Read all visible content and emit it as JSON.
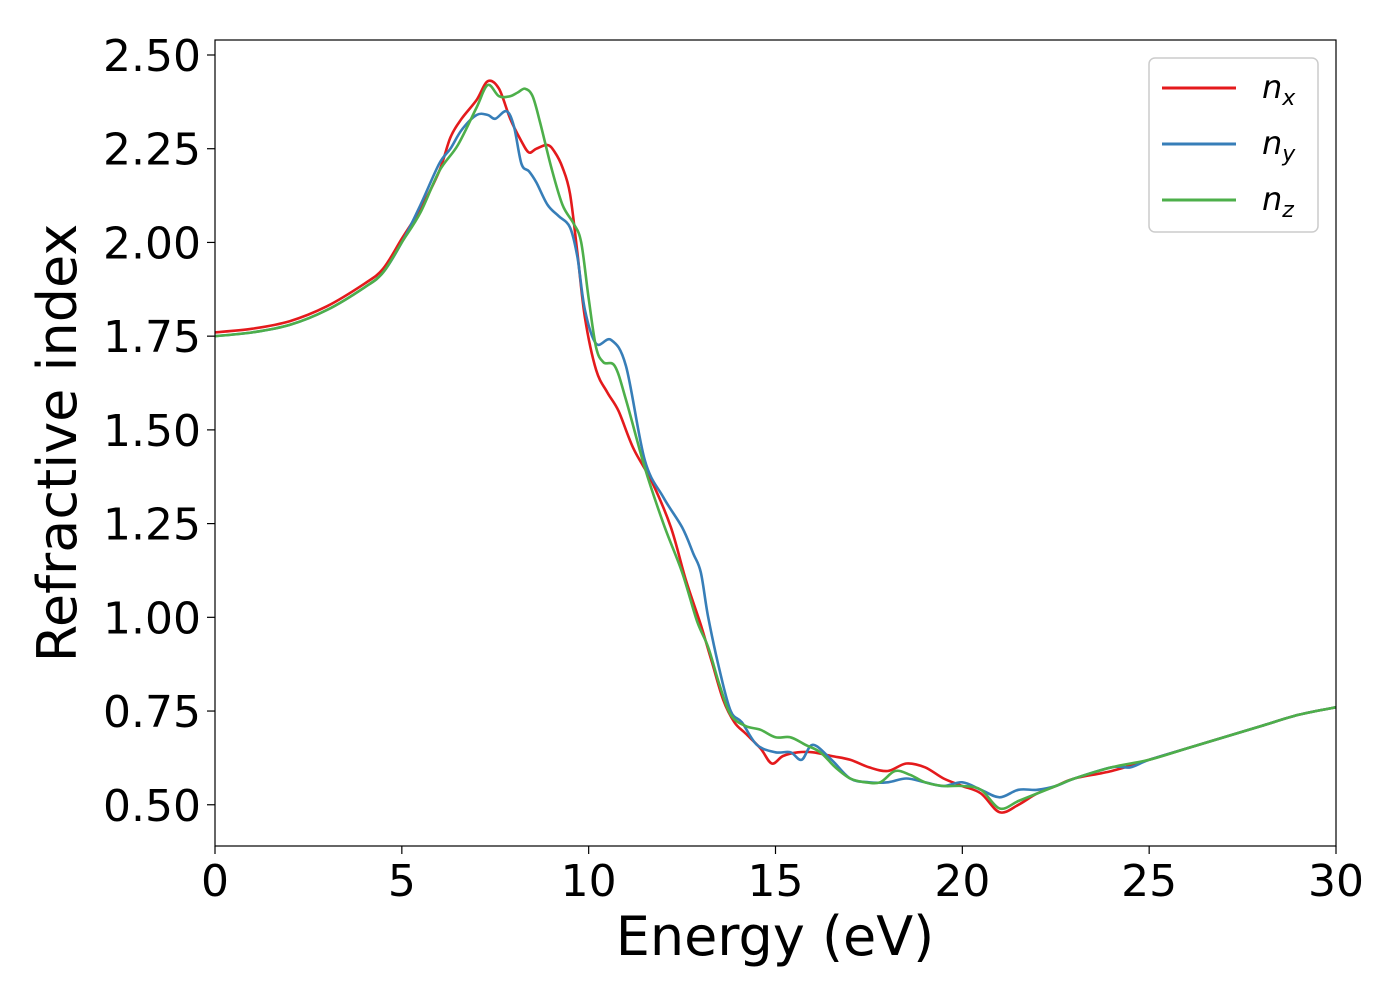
{
  "chart_data": {
    "type": "line",
    "xlabel": "Energy (eV)",
    "ylabel": "Refractive index",
    "xlim": [
      0,
      30
    ],
    "ylim": [
      0.39,
      2.54
    ],
    "xticks": [
      0,
      5,
      10,
      15,
      20,
      25,
      30
    ],
    "xtick_labels": [
      "0",
      "5",
      "10",
      "15",
      "20",
      "25",
      "30"
    ],
    "yticks": [
      0.5,
      0.75,
      1.0,
      1.25,
      1.5,
      1.75,
      2.0,
      2.25,
      2.5
    ],
    "ytick_labels": [
      "0.50",
      "0.75",
      "1.00",
      "1.25",
      "1.50",
      "1.75",
      "2.00",
      "2.25",
      "2.50"
    ],
    "grid": false,
    "legend_position": "top-right",
    "series": [
      {
        "name": "n",
        "subscript": "x",
        "color": "#e41a1c",
        "x": [
          0,
          1,
          2,
          3,
          4,
          4.5,
          5,
          5.5,
          6,
          6.3,
          6.6,
          7,
          7.3,
          7.6,
          7.9,
          8.2,
          8.4,
          8.6,
          8.9,
          9.1,
          9.3,
          9.5,
          9.7,
          9.9,
          10.2,
          10.5,
          10.8,
          11.2,
          11.7,
          12.2,
          12.6,
          13.0,
          13.3,
          13.6,
          13.9,
          14.2,
          14.6,
          14.9,
          15.2,
          15.6,
          16.0,
          16.5,
          17.0,
          17.5,
          18.0,
          18.5,
          19.0,
          19.5,
          20.0,
          20.5,
          21.0,
          21.5,
          22.0,
          22.5,
          23.0,
          24.0,
          25.0,
          26.0,
          27.0,
          28.0,
          29.0,
          30.0
        ],
        "y": [
          1.76,
          1.77,
          1.79,
          1.83,
          1.89,
          1.93,
          2.01,
          2.09,
          2.19,
          2.28,
          2.33,
          2.38,
          2.43,
          2.41,
          2.33,
          2.27,
          2.24,
          2.25,
          2.26,
          2.24,
          2.2,
          2.13,
          1.97,
          1.8,
          1.66,
          1.6,
          1.55,
          1.45,
          1.36,
          1.24,
          1.1,
          0.98,
          0.88,
          0.78,
          0.72,
          0.69,
          0.65,
          0.61,
          0.63,
          0.64,
          0.64,
          0.63,
          0.62,
          0.6,
          0.59,
          0.61,
          0.6,
          0.57,
          0.55,
          0.53,
          0.48,
          0.5,
          0.53,
          0.55,
          0.57,
          0.59,
          0.62,
          0.65,
          0.68,
          0.71,
          0.74,
          0.76
        ]
      },
      {
        "name": "n",
        "subscript": "y",
        "color": "#377eb8",
        "x": [
          0,
          1,
          2,
          3,
          4,
          4.5,
          5,
          5.5,
          6,
          6.3,
          6.6,
          7,
          7.3,
          7.5,
          7.8,
          8.0,
          8.2,
          8.4,
          8.6,
          8.9,
          9.2,
          9.5,
          9.7,
          9.9,
          10.2,
          10.6,
          11.0,
          11.5,
          12.0,
          12.5,
          12.8,
          13.0,
          13.2,
          13.5,
          13.8,
          14.1,
          14.5,
          15.0,
          15.4,
          15.7,
          16.0,
          16.5,
          17.0,
          17.5,
          18.0,
          18.5,
          19.0,
          19.5,
          20.0,
          20.5,
          21.0,
          21.5,
          22.0,
          22.5,
          23.0,
          24.0,
          24.5,
          25.0,
          26.0,
          27.0,
          28.0,
          29.0,
          30.0
        ],
        "y": [
          1.75,
          1.76,
          1.78,
          1.82,
          1.88,
          1.92,
          2.0,
          2.1,
          2.21,
          2.25,
          2.3,
          2.34,
          2.34,
          2.33,
          2.35,
          2.31,
          2.21,
          2.19,
          2.16,
          2.1,
          2.07,
          2.04,
          1.96,
          1.82,
          1.73,
          1.74,
          1.67,
          1.42,
          1.32,
          1.24,
          1.17,
          1.12,
          1.0,
          0.86,
          0.75,
          0.72,
          0.66,
          0.64,
          0.64,
          0.62,
          0.66,
          0.62,
          0.57,
          0.56,
          0.56,
          0.57,
          0.56,
          0.55,
          0.56,
          0.54,
          0.52,
          0.54,
          0.54,
          0.55,
          0.57,
          0.6,
          0.6,
          0.62,
          0.65,
          0.68,
          0.71,
          0.74,
          0.76
        ]
      },
      {
        "name": "n",
        "subscript": "z",
        "color": "#4daf4a",
        "x": [
          0,
          1,
          2,
          3,
          4,
          4.5,
          5,
          5.5,
          6,
          6.5,
          7,
          7.3,
          7.6,
          7.9,
          8.1,
          8.3,
          8.5,
          8.7,
          9.0,
          9.3,
          9.6,
          9.8,
          10.0,
          10.2,
          10.4,
          10.7,
          11.0,
          11.5,
          12.0,
          12.5,
          12.9,
          13.2,
          13.5,
          13.8,
          14.2,
          14.6,
          15.0,
          15.4,
          15.8,
          16.2,
          16.6,
          17.0,
          17.4,
          17.8,
          18.2,
          18.6,
          19.0,
          19.5,
          20.0,
          20.5,
          21.0,
          21.5,
          22.0,
          22.5,
          23.0,
          24.0,
          25.0,
          26.0,
          27.0,
          28.0,
          29.0,
          30.0
        ],
        "y": [
          1.75,
          1.76,
          1.78,
          1.82,
          1.88,
          1.92,
          2.0,
          2.08,
          2.19,
          2.26,
          2.36,
          2.42,
          2.39,
          2.39,
          2.4,
          2.41,
          2.39,
          2.32,
          2.2,
          2.1,
          2.05,
          2.0,
          1.85,
          1.72,
          1.68,
          1.67,
          1.58,
          1.4,
          1.25,
          1.12,
          0.99,
          0.92,
          0.82,
          0.74,
          0.71,
          0.7,
          0.68,
          0.68,
          0.66,
          0.64,
          0.6,
          0.57,
          0.56,
          0.56,
          0.59,
          0.58,
          0.56,
          0.55,
          0.55,
          0.54,
          0.49,
          0.51,
          0.53,
          0.55,
          0.57,
          0.6,
          0.62,
          0.65,
          0.68,
          0.71,
          0.74,
          0.76
        ]
      }
    ]
  }
}
